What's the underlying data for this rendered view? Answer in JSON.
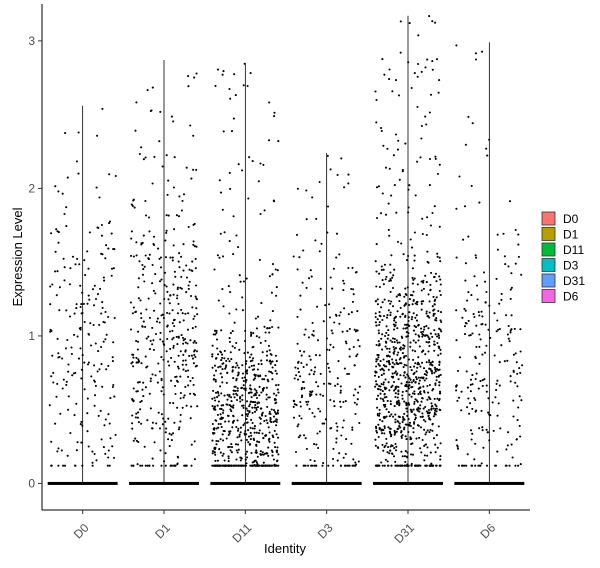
{
  "chart_data": {
    "type": "scatter",
    "subtype": "violin-jitter",
    "xlabel": "Identity",
    "ylabel": "Expression Level",
    "ylim": [
      -0.18,
      3.25
    ],
    "yticks": [
      0,
      1,
      2,
      3
    ],
    "grid": false,
    "legend_position": "right",
    "categories": [
      "D0",
      "D1",
      "D11",
      "D3",
      "D31",
      "D6"
    ],
    "series": [
      {
        "name": "D0",
        "color": "#F8766D",
        "max": 2.56,
        "zero_fraction": 0.7,
        "n_points": 220,
        "center": 0.9,
        "spread": 0.55
      },
      {
        "name": "D1",
        "color": "#B79F00",
        "max": 2.87,
        "zero_fraction": 0.6,
        "n_points": 420,
        "center": 0.9,
        "spread": 0.55
      },
      {
        "name": "D11",
        "color": "#00BA38",
        "max": 2.85,
        "zero_fraction": 0.5,
        "n_points": 700,
        "center": 0.45,
        "spread": 0.35
      },
      {
        "name": "D3",
        "color": "#00BFC4",
        "max": 2.24,
        "zero_fraction": 0.7,
        "n_points": 260,
        "center": 0.7,
        "spread": 0.45
      },
      {
        "name": "D31",
        "color": "#619CFF",
        "max": 3.17,
        "zero_fraction": 0.3,
        "n_points": 950,
        "center": 0.7,
        "spread": 0.4
      },
      {
        "name": "D6",
        "color": "#F564E3",
        "max": 2.99,
        "zero_fraction": 0.7,
        "n_points": 230,
        "center": 0.8,
        "spread": 0.5
      }
    ]
  }
}
